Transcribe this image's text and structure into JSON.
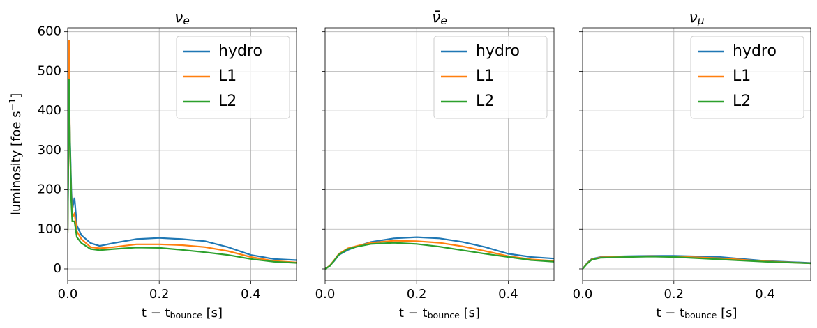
{
  "chart_data": [
    {
      "type": "line",
      "title": "ν_e",
      "xlabel": "t − t_{bounce} [s]",
      "ylabel": "luminosity [foe s^{−1}]",
      "x": [
        0,
        0.003,
        0.005,
        0.008,
        0.01,
        0.015,
        0.02,
        0.03,
        0.05,
        0.07,
        0.1,
        0.15,
        0.2,
        0.25,
        0.3,
        0.35,
        0.4,
        0.45,
        0.5
      ],
      "series": [
        {
          "name": "hydro",
          "color": "#1f77b4",
          "values": [
            100,
            450,
            330,
            200,
            150,
            180,
            110,
            85,
            65,
            58,
            65,
            75,
            78,
            75,
            70,
            55,
            35,
            25,
            22
          ]
        },
        {
          "name": "L1",
          "color": "#ff7f0e",
          "values": [
            95,
            580,
            300,
            180,
            130,
            140,
            95,
            75,
            55,
            52,
            55,
            62,
            62,
            60,
            55,
            45,
            30,
            20,
            16
          ]
        },
        {
          "name": "L2",
          "color": "#2ca02c",
          "values": [
            90,
            480,
            320,
            170,
            120,
            120,
            80,
            65,
            50,
            47,
            50,
            54,
            53,
            48,
            42,
            35,
            25,
            18,
            15
          ]
        }
      ],
      "xlim": [
        0,
        0.5
      ],
      "ylim": [
        -30,
        610
      ],
      "xticks": [
        {
          "value": 0,
          "label": "0.0"
        },
        0.2,
        0.4
      ],
      "yticks": [
        0,
        100,
        200,
        300,
        400,
        500,
        600
      ],
      "ytick_labels": true,
      "grid": true,
      "legend": "upper right"
    },
    {
      "type": "line",
      "title": "ν̄_e",
      "xlabel": "t − t_{bounce} [s]",
      "x": [
        0,
        0.01,
        0.02,
        0.03,
        0.05,
        0.07,
        0.1,
        0.15,
        0.2,
        0.25,
        0.3,
        0.35,
        0.4,
        0.45,
        0.5
      ],
      "series": [
        {
          "name": "hydro",
          "color": "#1f77b4",
          "values": [
            0,
            8,
            20,
            35,
            48,
            57,
            68,
            77,
            80,
            77,
            68,
            55,
            38,
            30,
            26
          ]
        },
        {
          "name": "L1",
          "color": "#ff7f0e",
          "values": [
            0,
            8,
            22,
            38,
            52,
            58,
            66,
            71,
            70,
            66,
            57,
            45,
            32,
            24,
            20
          ]
        },
        {
          "name": "L2",
          "color": "#2ca02c",
          "values": [
            0,
            7,
            21,
            36,
            50,
            56,
            63,
            66,
            63,
            56,
            47,
            38,
            30,
            22,
            18
          ]
        }
      ],
      "xlim": [
        0,
        0.5
      ],
      "ylim": [
        -30,
        610
      ],
      "xticks": [
        {
          "value": 0,
          "label": "0.0"
        },
        0.2,
        0.4
      ],
      "yticks": [
        0,
        100,
        200,
        300,
        400,
        500,
        600
      ],
      "ytick_labels": false,
      "grid": true,
      "legend": "upper right"
    },
    {
      "type": "line",
      "title": "ν_μ",
      "xlabel": "t − t_{bounce} [s]",
      "x": [
        0,
        0.01,
        0.02,
        0.04,
        0.07,
        0.1,
        0.15,
        0.2,
        0.3,
        0.4,
        0.5
      ],
      "series": [
        {
          "name": "hydro",
          "color": "#1f77b4",
          "values": [
            0,
            15,
            25,
            30,
            31,
            32,
            33,
            33,
            30,
            20,
            15
          ]
        },
        {
          "name": "L1",
          "color": "#ff7f0e",
          "values": [
            0,
            14,
            24,
            29,
            30,
            31,
            32,
            31,
            27,
            19,
            14
          ]
        },
        {
          "name": "L2",
          "color": "#2ca02c",
          "values": [
            0,
            13,
            23,
            28,
            29,
            30,
            31,
            30,
            24,
            18,
            14
          ]
        }
      ],
      "xlim": [
        0,
        0.5
      ],
      "ylim": [
        -30,
        610
      ],
      "xticks": [
        {
          "value": 0,
          "label": "0.0"
        },
        0.2,
        0.4
      ],
      "yticks": [
        0,
        100,
        200,
        300,
        400,
        500,
        600
      ],
      "ytick_labels": false,
      "grid": true,
      "legend": "upper right"
    }
  ]
}
